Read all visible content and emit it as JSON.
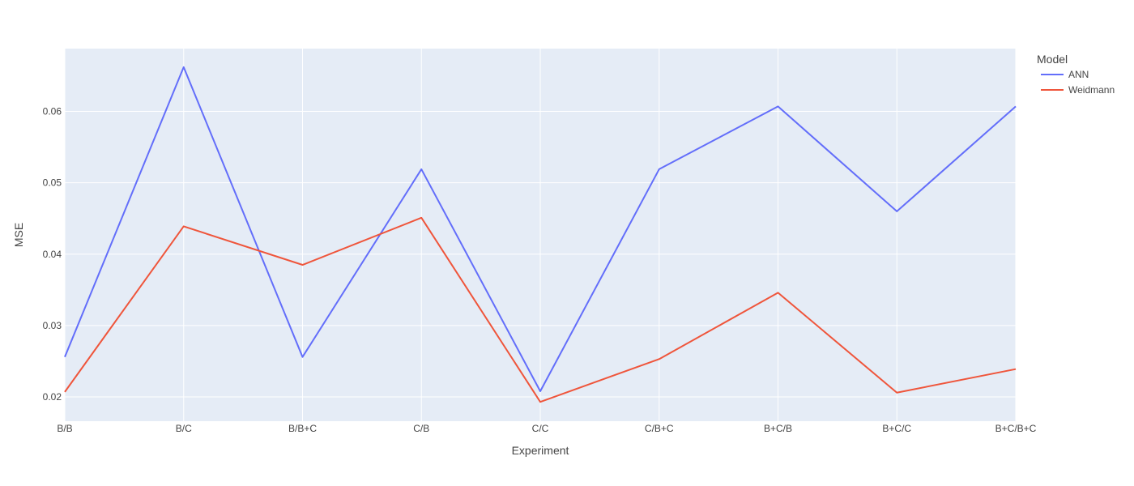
{
  "chart_data": {
    "type": "line",
    "categories": [
      "B/B",
      "B/C",
      "B/B+C",
      "C/B",
      "C/C",
      "C/B+C",
      "B+C/B",
      "B+C/C",
      "B+C/B+C"
    ],
    "series": [
      {
        "name": "ANN",
        "color": "#636efa",
        "values": [
          0.0256,
          0.0662,
          0.0256,
          0.0519,
          0.0208,
          0.0519,
          0.0607,
          0.046,
          0.0607
        ]
      },
      {
        "name": "Weidmann",
        "color": "#ef553b",
        "values": [
          0.0207,
          0.0439,
          0.0385,
          0.0451,
          0.0193,
          0.0253,
          0.0346,
          0.0206,
          0.0239
        ]
      }
    ],
    "xlabel": "Experiment",
    "ylabel": "MSE",
    "ylim": [
      0.0166,
      0.0688
    ],
    "yticks": [
      0.02,
      0.03,
      0.04,
      0.05,
      0.06
    ],
    "ytick_labels": [
      "0.02",
      "0.03",
      "0.04",
      "0.05",
      "0.06"
    ],
    "legend_title": "Model",
    "legend_position": "top-right",
    "grid": true,
    "plot_background": "#e5ecf6",
    "grid_color": "#ffffff"
  }
}
